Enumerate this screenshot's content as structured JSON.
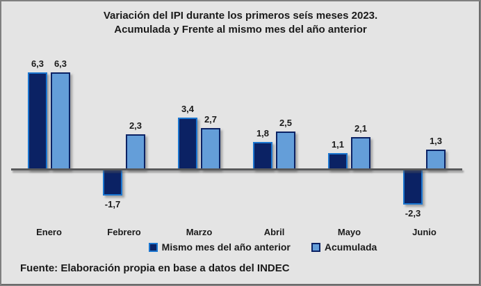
{
  "title": {
    "line1": "Variación del IPI durante los primeros seís meses 2023.",
    "line2": "Acumulada y Frente al mismo mes del año anterior"
  },
  "footer": {
    "source": "Fuente: Elaboración propia en base a datos del INDEC"
  },
  "colors": {
    "background": "#e4e4e4",
    "frame_border": "#7f7f7f",
    "axis_line": "#58595b",
    "text": "#1a1a1a",
    "series1_fill": "#0b2264",
    "series1_border": "#1b76d0",
    "series2_fill": "#649ed9",
    "series2_border": "#0b2264"
  },
  "chart_data": {
    "type": "bar",
    "title": "Variación del IPI durante los primeros seís meses 2023. Acumulada y Frente al mismo mes del año anterior",
    "categories": [
      "Enero",
      "Febrero",
      "Marzo",
      "Abril",
      "Mayo",
      "Junio"
    ],
    "series": [
      {
        "name": "Mismo mes del año anterior",
        "values": [
          6.3,
          -1.7,
          3.4,
          1.8,
          1.1,
          -2.3
        ],
        "fill": "#0b2264",
        "border": "#1b76d0"
      },
      {
        "name": "Acumulada",
        "values": [
          6.3,
          2.3,
          2.7,
          2.5,
          2.1,
          1.3
        ],
        "fill": "#649ed9",
        "border": "#0b2264"
      }
    ],
    "value_label_format": "decimal-comma",
    "xlabel": "",
    "ylabel": "",
    "ylim": [
      -3,
      7
    ],
    "grid": false,
    "axis_ticks_visible": false,
    "legend_position": "bottom",
    "source_note": "Fuente: Elaboración propia en base a datos del INDEC"
  }
}
